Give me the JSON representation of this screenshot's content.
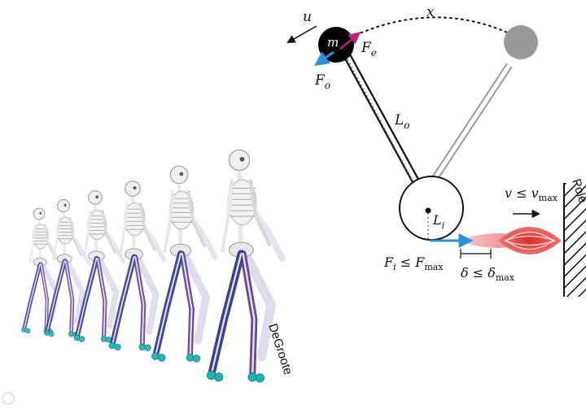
{
  "labels": {
    "u": "u",
    "x": "x",
    "m": "m",
    "fe_base": "F",
    "fe_sub": "e",
    "fo_base": "F",
    "fo_sub": "o",
    "lo_base": "L",
    "lo_sub": "o",
    "li_base": "L",
    "li_sub": "i",
    "v_rel": "v ≤ v",
    "v_sub": "max",
    "fi_rel": "F",
    "fi_sub": "i",
    "fi_mid": " ≤ F",
    "fi_sub2": "max",
    "delta_rel": "δ ≤ δ",
    "delta_sub": "max",
    "pole": "Pole",
    "degroote": "DeGroote"
  },
  "colors": {
    "mass": "#000000",
    "ghost_mass": "#9a9a9a",
    "arrow_blue": "#2a8fd8",
    "arrow_magenta": "#b8267a",
    "muscle_red": "#e03a3a",
    "muscle_light": "#f5a8a8",
    "skeleton_bone": "#e8e8e8",
    "skeleton_muscle": "#3b3f9a",
    "foot_marker": "#1fb3b3"
  },
  "icons": [
    "walking-skeleton-figure",
    "muscle-spindle-icon",
    "pole-wall-icon"
  ]
}
